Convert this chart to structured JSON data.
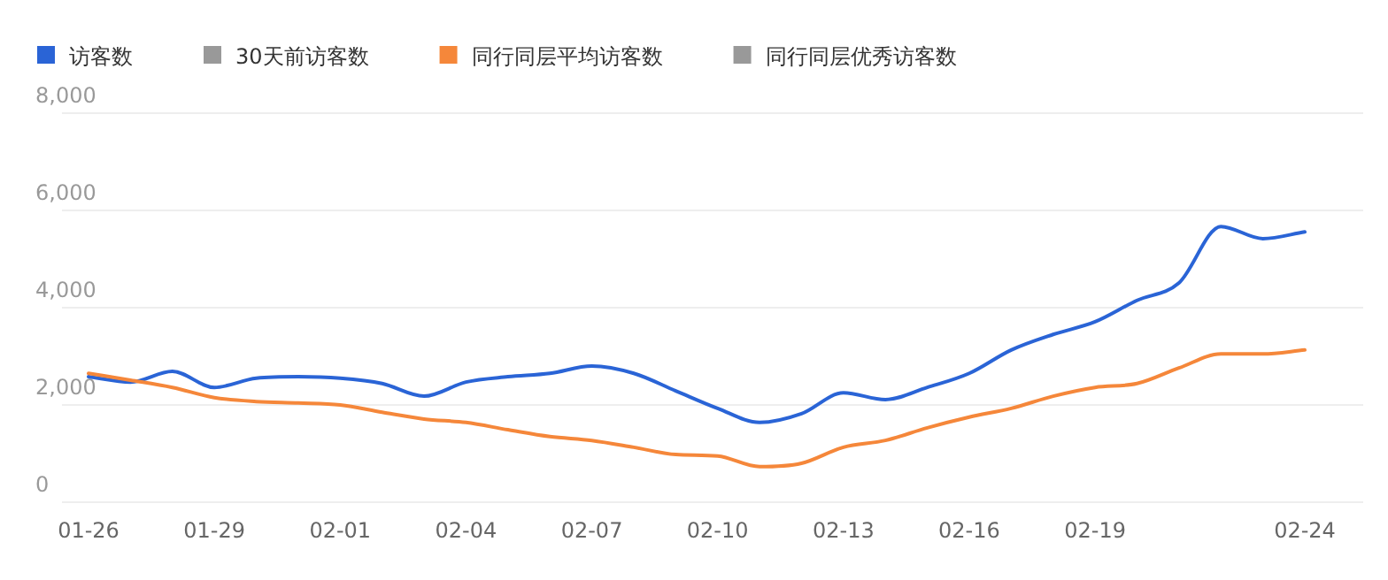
{
  "chart_data": {
    "type": "line",
    "categories": [
      "01-26",
      null,
      null,
      "01-29",
      null,
      null,
      "02-01",
      null,
      null,
      "02-04",
      null,
      null,
      "02-07",
      null,
      null,
      "02-10",
      null,
      null,
      "02-13",
      null,
      null,
      "02-16",
      null,
      null,
      "02-19",
      null,
      null,
      null,
      null,
      "02-24"
    ],
    "series": [
      {
        "name": "访客数",
        "color": "#2a64d6",
        "values": [
          2580,
          2470,
          2690,
          2360,
          2550,
          2580,
          2550,
          2440,
          2180,
          2470,
          2580,
          2650,
          2800,
          2650,
          2290,
          1930,
          1640,
          1820,
          2250,
          2110,
          2360,
          2650,
          3130,
          3450,
          3710,
          4150,
          4510,
          5670,
          5420,
          5560
        ]
      },
      {
        "name": "30天前访客数",
        "color": "#999999",
        "values": [
          null,
          null,
          null,
          null,
          null,
          null,
          null,
          null,
          null,
          null,
          null,
          null,
          null,
          null,
          null,
          null,
          null,
          null,
          null,
          null,
          null,
          null,
          null,
          null,
          null,
          null,
          null,
          null,
          null,
          null
        ]
      },
      {
        "name": "同行同层平均访客数",
        "color": "#f5873a",
        "values": [
          2650,
          2510,
          2360,
          2150,
          2070,
          2040,
          2000,
          1850,
          1710,
          1640,
          1490,
          1350,
          1270,
          1130,
          980,
          950,
          730,
          800,
          1130,
          1270,
          1530,
          1750,
          1930,
          2180,
          2360,
          2440,
          2760,
          3050,
          3050,
          3130
        ]
      },
      {
        "name": "同行同层优秀访客数",
        "color": "#999999",
        "values": [
          null,
          null,
          null,
          null,
          null,
          null,
          null,
          null,
          null,
          null,
          null,
          null,
          null,
          null,
          null,
          null,
          null,
          null,
          null,
          null,
          null,
          null,
          null,
          null,
          null,
          null,
          null,
          null,
          null,
          null
        ]
      }
    ],
    "ylim": [
      0,
      8000
    ],
    "yticks": [
      {
        "value": 0,
        "label": "0"
      },
      {
        "value": 2000,
        "label": "2,000"
      },
      {
        "value": 4000,
        "label": "4,000"
      },
      {
        "value": 6000,
        "label": "6,000"
      },
      {
        "value": 8000,
        "label": "8,000"
      }
    ],
    "grid": "y",
    "legend": "top",
    "line_style": "solid",
    "marker": "none"
  }
}
